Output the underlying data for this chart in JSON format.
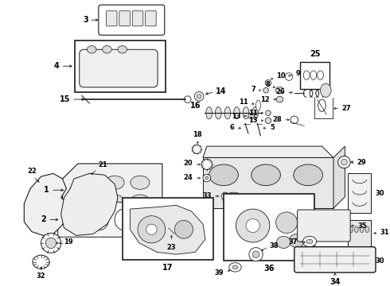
{
  "bg_color": "#ffffff",
  "fig_width": 4.9,
  "fig_height": 3.6,
  "dpi": 100,
  "line_color": "#1a1a1a",
  "label_color": "#000000",
  "font_size": 7.0
}
